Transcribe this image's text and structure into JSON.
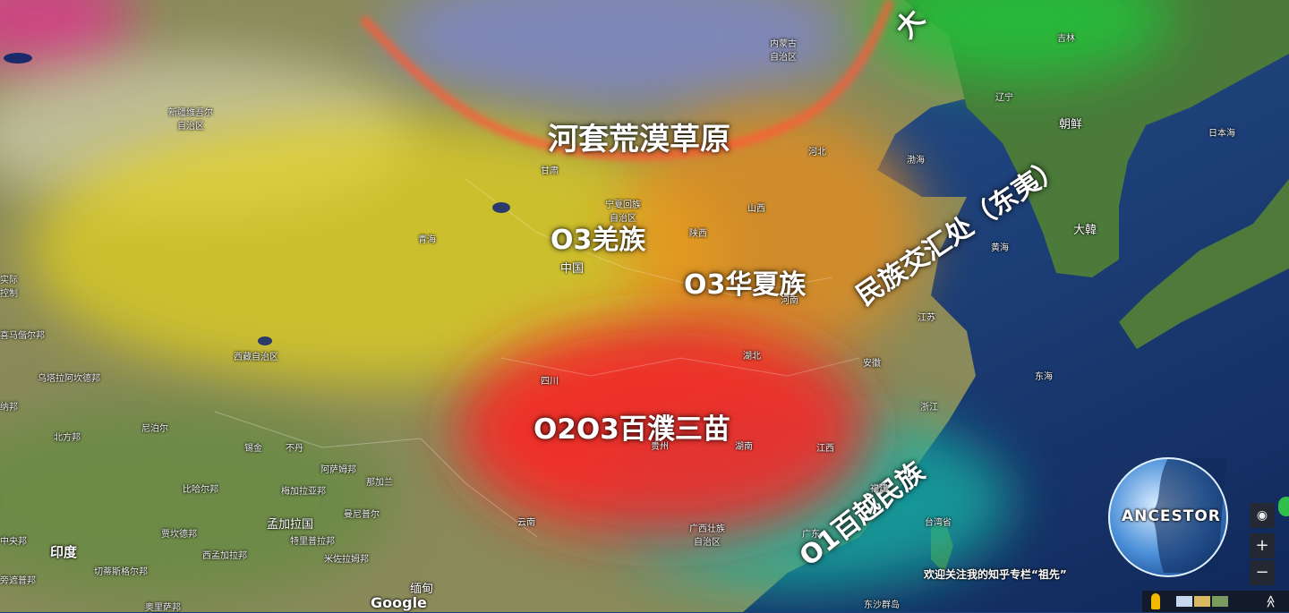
{
  "colors": {
    "yellow_region": "#e8d61c",
    "orange_region": "#e88d1c",
    "red_region": "#ff2020",
    "teal_region": "#18b5a5",
    "steppe_arc": "#ff5a3a",
    "north_green": "#22c23a",
    "sea": "#1c3f7a"
  },
  "ethnic_labels": {
    "steppe": "河套荒漠草原",
    "qiang": "O3羌族",
    "huaxia": "O3华夏族",
    "baipu": "O2O3百濮三苗",
    "baiyue": "O1百越民族",
    "dongyi": "民族交汇处（东夷）",
    "north_partial": "大"
  },
  "places": {
    "xinjiang": "新疆维吾尔\n自治区",
    "neimenggu": "内蒙古\n自治区",
    "jilin": "吉林",
    "liaoning": "辽宁",
    "chaoxian": "朝鲜",
    "ribenhai": "日本海",
    "bohai": "渤海",
    "gansu": "甘肃",
    "ningxia": "宁夏回族\n自治区",
    "shanxi": "山西",
    "hebei": "河北",
    "qinghai": "青海",
    "shaanxi": "陕西",
    "zhongguo": "中国",
    "henan": "河南",
    "hanguo": "大韓",
    "huanghai": "黄海",
    "jiangsu": "江苏",
    "xizang": "西藏自治区",
    "hubei": "湖北",
    "anhui": "安徽",
    "sichuan": "四川",
    "donghai": "东海",
    "zhejiang": "浙江",
    "guizhou": "贵州",
    "hunan": "湖南",
    "jiangxi": "江西",
    "fujian": "福建",
    "yunnan": "云南",
    "guangxi": "广西壮族\n自治区",
    "guangdong": "广东",
    "taiwan": "台湾省",
    "miandian": "缅甸",
    "dongsha": "东沙群岛",
    "indu": "印度",
    "niboer": "尼泊尔",
    "budan": "不丹",
    "xijin": "锡金",
    "asamu": "阿萨姆邦",
    "najialan": "那加兰",
    "meijiala": "梅加拉亚邦",
    "manibuer": "曼尼普尔",
    "mengjiala": "孟加拉国",
    "telipu": "特里普拉邦",
    "mizuola": "米佐拉姆邦",
    "bihaer": "比哈尔邦",
    "beifang": "北方邦",
    "jiakanze": "贾坎德邦",
    "xmengjiala": "西孟加拉邦",
    "qietisi": "切蒂斯格尔邦",
    "aolisa": "奥里萨邦",
    "zhongyang": "中央邦",
    "wutazhe": "乌塔拉阿坎德邦",
    "nana": "纳邦",
    "xidang": "喜马偕尔邦",
    "shiji": "实际\n控制",
    "jiapubang": "旁遮普邦"
  },
  "watermark": "欢迎关注我的知乎专栏“祖先”",
  "logo_text": "ANCESTOR",
  "google_logo": "Google",
  "controls": {
    "zoom_in": "+",
    "zoom_out": "−",
    "expand": "≫"
  }
}
